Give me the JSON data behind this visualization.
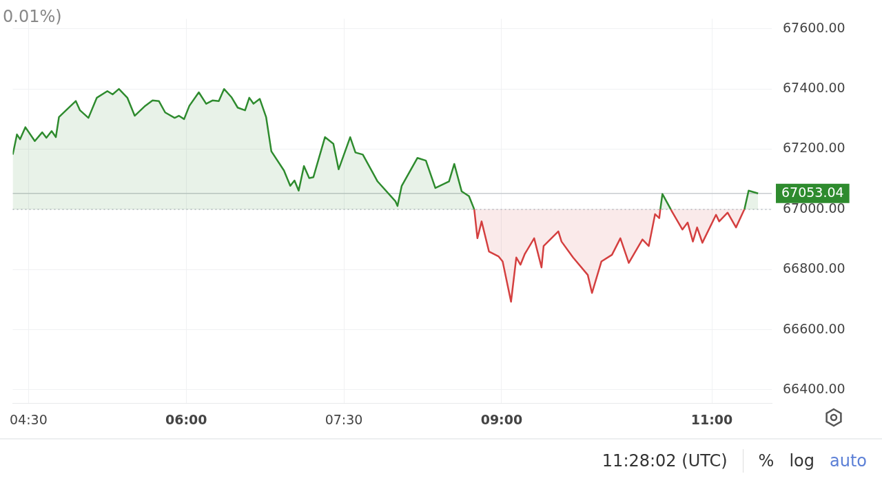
{
  "chart_data": {
    "type": "area",
    "annotations": [
      "0.01%)",
      "11:28:02 (UTC)",
      "%",
      "log",
      "auto"
    ],
    "xlim": [
      4.35,
      11.57
    ],
    "ylim": [
      66356,
      67633
    ],
    "xticks": [
      {
        "value": 4.5,
        "label": "04:30"
      },
      {
        "value": 6,
        "label": "06:00"
      },
      {
        "value": 7.5,
        "label": "07:30"
      },
      {
        "value": 9,
        "label": "09:00"
      },
      {
        "value": 11,
        "label": "11:00"
      }
    ],
    "yticks": [
      {
        "value": 66400,
        "label": "66400.00"
      },
      {
        "value": 66600,
        "label": "66600.00"
      },
      {
        "value": 66800,
        "label": "66800.00"
      },
      {
        "value": 67000,
        "label": "67000.00"
      },
      {
        "value": 67200,
        "label": "67200.00"
      },
      {
        "value": 67400,
        "label": "67400.00"
      },
      {
        "value": 67600,
        "label": "67600.00"
      }
    ],
    "grid": true,
    "legend": false,
    "marker": "none",
    "line_style": "solid",
    "ref_lines": [
      {
        "axis": "y",
        "value": 67053.04,
        "label": "67053.04",
        "color": "#c8ccd0",
        "line_style": "solid"
      },
      {
        "axis": "y",
        "value": 67000,
        "color": "#c8ccd0",
        "line_style": "dotted"
      }
    ],
    "series": [
      {
        "color": "#2e8b2e",
        "x": [
          4.35,
          4.39,
          4.42,
          4.47,
          4.56,
          4.63,
          4.67,
          4.72,
          4.76,
          4.79,
          4.85,
          4.95,
          4.99,
          5.07,
          5.15,
          5.25,
          5.3,
          5.36,
          5.44,
          5.51,
          5.61,
          5.68,
          5.74,
          5.8,
          5.89,
          5.93,
          5.98,
          6.03,
          6.12,
          6.19,
          6.25,
          6.31,
          6.36,
          6.43,
          6.49,
          6.56,
          6.6,
          6.64,
          6.7,
          6.76,
          6.81,
          6.93,
          6.99,
          7.03,
          7.07,
          7.12,
          7.17,
          7.21,
          7.32,
          7.4,
          7.45,
          7.56,
          7.61,
          7.68,
          7.82,
          7.99,
          8.01,
          8.05,
          8.2,
          8.28,
          8.37,
          8.5,
          8.55,
          8.62,
          8.69,
          8.74
        ],
        "values": [
          67182,
          67249,
          67233,
          67273,
          67227,
          67256,
          67238,
          67260,
          67240,
          67307,
          67327,
          67360,
          67329,
          67304,
          67371,
          67393,
          67382,
          67400,
          67371,
          67311,
          67344,
          67362,
          67360,
          67322,
          67304,
          67311,
          67300,
          67344,
          67389,
          67351,
          67362,
          67360,
          67400,
          67373,
          67338,
          67329,
          67371,
          67351,
          67367,
          67307,
          67193,
          67129,
          67078,
          67096,
          67062,
          67144,
          67104,
          67107,
          67240,
          67218,
          67133,
          67240,
          67189,
          67182,
          67093,
          67027,
          67011,
          67078,
          67171,
          67162,
          67071,
          67093,
          67151,
          67060,
          67044,
          67000
        ]
      },
      {
        "color": "#d43f3f",
        "x": [
          8.74,
          8.77,
          8.81,
          8.88,
          8.97,
          9.01,
          9.09,
          9.14,
          9.18,
          9.22,
          9.31,
          9.38,
          9.4,
          9.54,
          9.57,
          9.68,
          9.82,
          9.86,
          9.95,
          10.05,
          10.13,
          10.21,
          10.34,
          10.4,
          10.46,
          10.5,
          10.51
        ],
        "values": [
          67000,
          66904,
          66960,
          66860,
          66844,
          66827,
          66693,
          66840,
          66816,
          66851,
          66904,
          66807,
          66878,
          66927,
          66893,
          66840,
          66782,
          66722,
          66827,
          66849,
          66904,
          66822,
          66900,
          66878,
          66984,
          66971,
          67000
        ]
      },
      {
        "color": "#2e8b2e",
        "x": [
          10.51,
          10.53,
          10.61
        ],
        "values": [
          67000,
          67051,
          67000
        ]
      },
      {
        "color": "#d43f3f",
        "x": [
          10.61,
          10.62,
          10.72,
          10.77,
          10.82,
          10.86,
          10.91,
          11.04,
          11.07,
          11.15,
          11.23,
          11.3,
          11.31
        ],
        "values": [
          67000,
          66993,
          66933,
          66956,
          66893,
          66940,
          66889,
          66982,
          66960,
          66989,
          66940,
          66993,
          67000
        ]
      },
      {
        "color": "#2e8b2e",
        "x": [
          11.31,
          11.35,
          11.44
        ],
        "values": [
          67000,
          67062,
          67053
        ]
      }
    ]
  }
}
